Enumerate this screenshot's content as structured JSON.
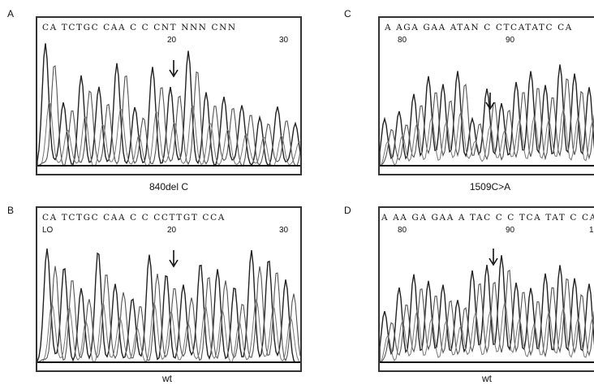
{
  "panels": [
    {
      "letter": "A",
      "sequence": "CA TCTGC CAA C C CNT NNN CNN",
      "num_left": "20",
      "num_right": "30",
      "caption": "840del C"
    },
    {
      "letter": "C",
      "sequence": "A AGA GAA ATAN C CTCATATC CA",
      "num_left": "80",
      "num_right": "90",
      "caption": "1509C>A"
    },
    {
      "letter": "B",
      "sequence": "CA TCTGC CAA C C CCTTGT CCA",
      "num_pre": "LO",
      "num_left": "20",
      "num_right": "30",
      "caption": "wt"
    },
    {
      "letter": "D",
      "sequence": "A AA GA GAA A TAC C C TCA TAT C CA",
      "num_left": "80",
      "num_right": "90",
      "num_extra": "1",
      "caption": "wt"
    }
  ]
}
